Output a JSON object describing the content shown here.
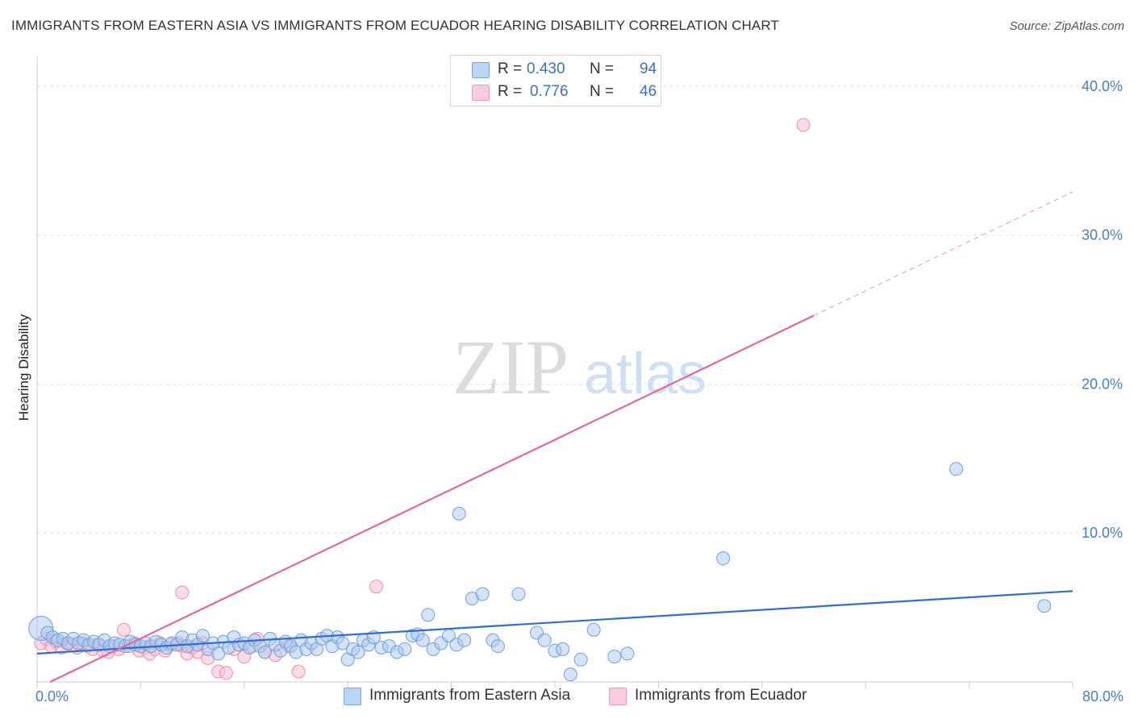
{
  "header": {
    "title": "IMMIGRANTS FROM EASTERN ASIA VS IMMIGRANTS FROM ECUADOR HEARING DISABILITY CORRELATION CHART",
    "source": "Source: ZipAtlas.com"
  },
  "legend": {
    "series1": {
      "r_label": "R =",
      "r_value": "0.430",
      "n_label": "N =",
      "n_value": "94"
    },
    "series2": {
      "r_label": "R =",
      "r_value": "0.776",
      "n_label": "N =",
      "n_value": "46"
    }
  },
  "watermark": {
    "zip": "ZIP",
    "atlas": "atlas"
  },
  "colors": {
    "blue_fill": "#a9c8f0",
    "blue_stroke": "#6f9fdc",
    "blue_line": "#2f6fc9",
    "pink_fill": "#f7bfd1",
    "pink_stroke": "#e88fae",
    "pink_line": "#e06a96",
    "tick_text": "#4a7cc9",
    "grid": "#dddddd"
  },
  "chart_data": {
    "type": "scatter",
    "title": "IMMIGRANTS FROM EASTERN ASIA VS IMMIGRANTS FROM ECUADOR HEARING DISABILITY CORRELATION CHART",
    "xlabel": "",
    "ylabel": "Hearing Disability",
    "xlim": [
      0,
      80
    ],
    "ylim": [
      0,
      42
    ],
    "x_tick_labels": [
      "0.0%",
      "80.0%"
    ],
    "y_ticks": [
      10,
      20,
      30,
      40
    ],
    "y_tick_labels": [
      "10.0%",
      "20.0%",
      "30.0%",
      "40.0%"
    ],
    "legend_position": "top-center",
    "series": [
      {
        "name": "Immigrants from Eastern Asia",
        "color": "#a9c8f0",
        "r": 0.43,
        "n": 94,
        "trend": {
          "x": [
            0,
            80
          ],
          "y": [
            1.9,
            6.1
          ]
        },
        "points": [
          [
            0.3,
            3.6
          ],
          [
            0.8,
            3.3
          ],
          [
            1.2,
            3.0
          ],
          [
            1.6,
            2.8
          ],
          [
            2.0,
            2.9
          ],
          [
            2.4,
            2.6
          ],
          [
            2.8,
            2.9
          ],
          [
            3.2,
            2.6
          ],
          [
            3.6,
            2.8
          ],
          [
            4.0,
            2.5
          ],
          [
            4.4,
            2.7
          ],
          [
            4.8,
            2.5
          ],
          [
            5.2,
            2.8
          ],
          [
            5.6,
            2.4
          ],
          [
            6.0,
            2.6
          ],
          [
            6.4,
            2.5
          ],
          [
            6.8,
            2.4
          ],
          [
            7.2,
            2.7
          ],
          [
            7.6,
            2.5
          ],
          [
            8.0,
            2.4
          ],
          [
            8.4,
            2.6
          ],
          [
            8.8,
            2.4
          ],
          [
            9.2,
            2.7
          ],
          [
            9.6,
            2.5
          ],
          [
            10.0,
            2.3
          ],
          [
            10.4,
            2.6
          ],
          [
            10.8,
            2.5
          ],
          [
            11.2,
            3.0
          ],
          [
            11.6,
            2.4
          ],
          [
            12.0,
            2.8
          ],
          [
            12.4,
            2.5
          ],
          [
            12.8,
            3.1
          ],
          [
            13.2,
            2.2
          ],
          [
            13.6,
            2.6
          ],
          [
            14.0,
            1.9
          ],
          [
            14.4,
            2.7
          ],
          [
            14.8,
            2.3
          ],
          [
            15.2,
            3.0
          ],
          [
            15.6,
            2.5
          ],
          [
            16.0,
            2.6
          ],
          [
            16.4,
            2.3
          ],
          [
            16.8,
            2.8
          ],
          [
            17.2,
            2.4
          ],
          [
            17.6,
            2.0
          ],
          [
            18.0,
            2.9
          ],
          [
            18.4,
            2.5
          ],
          [
            18.8,
            2.1
          ],
          [
            19.2,
            2.7
          ],
          [
            19.6,
            2.4
          ],
          [
            20.0,
            2.0
          ],
          [
            20.4,
            2.8
          ],
          [
            20.8,
            2.2
          ],
          [
            21.2,
            2.6
          ],
          [
            21.6,
            2.2
          ],
          [
            22.0,
            2.9
          ],
          [
            22.4,
            3.1
          ],
          [
            22.8,
            2.4
          ],
          [
            23.2,
            3.0
          ],
          [
            23.6,
            2.6
          ],
          [
            24.0,
            1.5
          ],
          [
            24.4,
            2.2
          ],
          [
            24.8,
            2.0
          ],
          [
            25.2,
            2.8
          ],
          [
            25.6,
            2.5
          ],
          [
            26.0,
            3.0
          ],
          [
            26.6,
            2.3
          ],
          [
            27.2,
            2.4
          ],
          [
            27.8,
            2.0
          ],
          [
            28.4,
            2.2
          ],
          [
            29.0,
            3.1
          ],
          [
            29.4,
            3.2
          ],
          [
            29.8,
            2.8
          ],
          [
            30.2,
            4.5
          ],
          [
            30.6,
            2.2
          ],
          [
            31.2,
            2.6
          ],
          [
            31.8,
            3.1
          ],
          [
            32.4,
            2.5
          ],
          [
            33.0,
            2.8
          ],
          [
            33.6,
            5.6
          ],
          [
            34.4,
            5.9
          ],
          [
            35.2,
            2.8
          ],
          [
            35.6,
            2.4
          ],
          [
            37.2,
            5.9
          ],
          [
            38.6,
            3.3
          ],
          [
            39.2,
            2.8
          ],
          [
            40.0,
            2.1
          ],
          [
            40.6,
            2.2
          ],
          [
            41.2,
            0.5
          ],
          [
            42.0,
            1.5
          ],
          [
            43.0,
            3.5
          ],
          [
            44.6,
            1.7
          ],
          [
            45.6,
            1.9
          ],
          [
            53.0,
            8.3
          ],
          [
            71.0,
            14.3
          ],
          [
            77.8,
            5.1
          ],
          [
            32.6,
            11.3
          ]
        ]
      },
      {
        "name": "Immigrants from Ecuador",
        "color": "#f7bfd1",
        "r": 0.776,
        "n": 46,
        "trend": {
          "x": [
            1.0,
            60.0
          ],
          "y": [
            0.0,
            24.6
          ]
        },
        "trend_dashed": {
          "x": [
            60.0,
            80.0
          ],
          "y": [
            24.6,
            32.9
          ]
        },
        "points": [
          [
            0.3,
            2.6
          ],
          [
            0.7,
            2.9
          ],
          [
            1.1,
            2.4
          ],
          [
            1.5,
            2.7
          ],
          [
            1.9,
            2.3
          ],
          [
            2.3,
            2.6
          ],
          [
            2.7,
            2.5
          ],
          [
            3.1,
            2.3
          ],
          [
            3.5,
            2.6
          ],
          [
            3.9,
            2.4
          ],
          [
            4.3,
            2.2
          ],
          [
            4.7,
            2.5
          ],
          [
            5.1,
            2.1
          ],
          [
            5.5,
            2.0
          ],
          [
            5.9,
            2.4
          ],
          [
            6.3,
            2.2
          ],
          [
            6.7,
            3.5
          ],
          [
            7.1,
            2.4
          ],
          [
            7.5,
            2.6
          ],
          [
            7.9,
            2.1
          ],
          [
            8.3,
            2.3
          ],
          [
            8.7,
            1.9
          ],
          [
            9.1,
            2.2
          ],
          [
            9.5,
            2.6
          ],
          [
            9.9,
            2.1
          ],
          [
            10.3,
            2.5
          ],
          [
            10.9,
            2.6
          ],
          [
            11.2,
            2.4
          ],
          [
            11.6,
            1.9
          ],
          [
            12.0,
            2.3
          ],
          [
            12.4,
            2.0
          ],
          [
            12.8,
            2.6
          ],
          [
            13.2,
            1.6
          ],
          [
            14.0,
            0.7
          ],
          [
            14.6,
            0.6
          ],
          [
            15.2,
            2.2
          ],
          [
            16.0,
            1.7
          ],
          [
            16.6,
            2.4
          ],
          [
            17.0,
            2.9
          ],
          [
            17.6,
            2.0
          ],
          [
            18.4,
            1.8
          ],
          [
            19.4,
            2.4
          ],
          [
            20.2,
            0.7
          ],
          [
            11.2,
            6.0
          ],
          [
            26.2,
            6.4
          ],
          [
            59.2,
            37.4
          ]
        ]
      }
    ]
  },
  "bottom_legend": {
    "items": [
      {
        "label": "Immigrants from Eastern Asia"
      },
      {
        "label": "Immigrants from Ecuador"
      }
    ]
  }
}
